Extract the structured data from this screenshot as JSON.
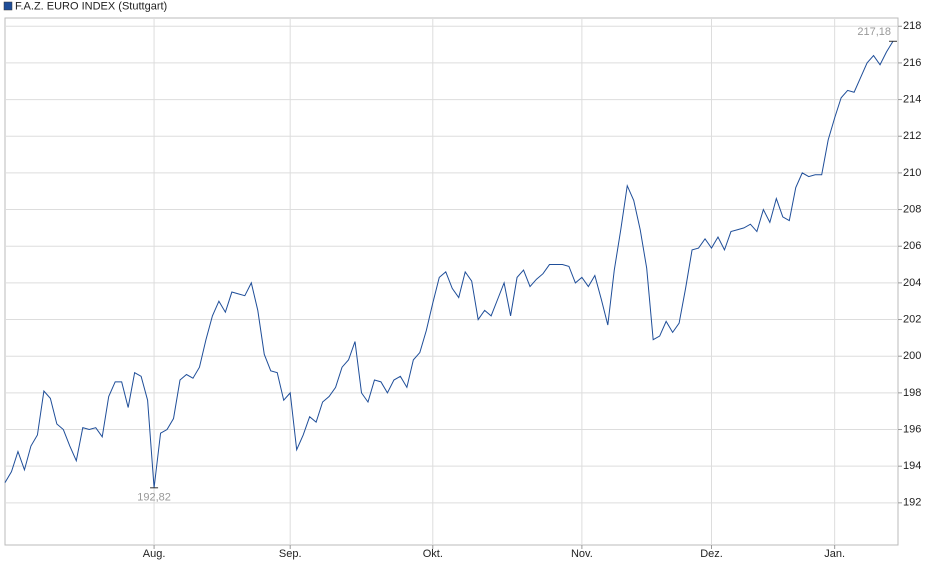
{
  "chart_data": {
    "type": "line",
    "series": [
      {
        "name": "F.A.Z. EURO INDEX (Stuttgart)",
        "color": "#1f4e99",
        "values": [
          193.1,
          193.7,
          194.8,
          193.8,
          195.1,
          195.7,
          198.1,
          197.7,
          196.3,
          196.0,
          195.1,
          194.3,
          196.1,
          196.0,
          196.1,
          195.6,
          197.8,
          198.6,
          198.6,
          197.2,
          199.1,
          198.9,
          197.6,
          192.82,
          195.8,
          196.0,
          196.6,
          198.7,
          199.0,
          198.8,
          199.4,
          200.9,
          202.2,
          203.0,
          202.4,
          203.5,
          203.4,
          203.3,
          204.0,
          202.5,
          200.1,
          199.2,
          199.1,
          197.6,
          198.0,
          194.9,
          195.7,
          196.7,
          196.4,
          197.5,
          197.8,
          198.3,
          199.4,
          199.8,
          200.8,
          198.0,
          197.5,
          198.7,
          198.6,
          198.0,
          198.7,
          198.9,
          198.3,
          199.8,
          200.2,
          201.4,
          202.9,
          204.3,
          204.6,
          203.7,
          203.2,
          204.6,
          204.1,
          202.0,
          202.5,
          202.2,
          203.1,
          204.0,
          202.2,
          204.3,
          204.7,
          203.8,
          204.2,
          204.5,
          205.0,
          205.0,
          205.0,
          204.9,
          204.0,
          204.3,
          203.8,
          204.4,
          203.1,
          201.7,
          204.7,
          206.9,
          209.3,
          208.5,
          206.9,
          204.8,
          200.9,
          201.1,
          201.9,
          201.3,
          201.8,
          203.7,
          205.8,
          205.9,
          206.4,
          205.9,
          206.5,
          205.8,
          206.8,
          206.9,
          207.0,
          207.2,
          206.8,
          208.0,
          207.3,
          208.6,
          207.6,
          207.4,
          209.2,
          210.0,
          209.8,
          209.9,
          209.9,
          211.8,
          213.0,
          214.1,
          214.5,
          214.4,
          215.2,
          216.0,
          216.4,
          215.9,
          216.6,
          217.18
        ]
      }
    ],
    "max_label": {
      "value": 217.18,
      "label": "217,18"
    },
    "min_label": {
      "value": 192.82,
      "label": "192,82"
    },
    "xlim": [
      0,
      137
    ],
    "xticks": [
      {
        "value": 23,
        "label": "Aug."
      },
      {
        "value": 44,
        "label": "Sep."
      },
      {
        "value": 66,
        "label": "Okt."
      },
      {
        "value": 89,
        "label": "Nov."
      },
      {
        "value": 109,
        "label": "Dez."
      },
      {
        "value": 128,
        "label": "Jan."
      }
    ],
    "ylim": [
      189.7,
      218.45
    ],
    "yticks": [
      192,
      194,
      196,
      198,
      200,
      202,
      204,
      206,
      208,
      210,
      212,
      214,
      216,
      218
    ],
    "grid": true
  }
}
